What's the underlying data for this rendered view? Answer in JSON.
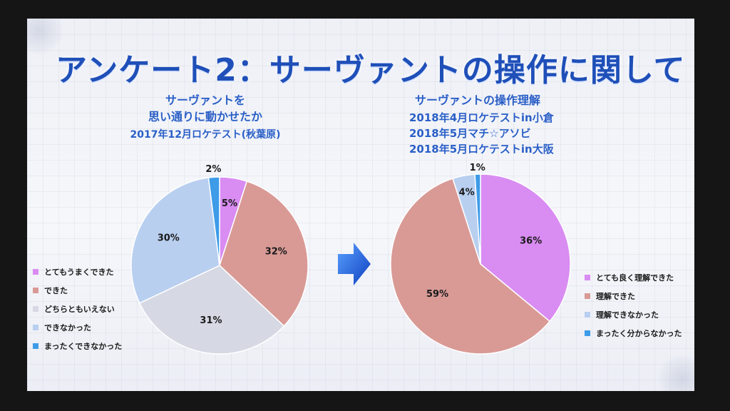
{
  "slide": {
    "title": "アンケート2：サーヴァントの操作に関して"
  },
  "left": {
    "heading_line1": "サーヴァントを",
    "heading_line2": "思い通りに動かせたか",
    "subheading": "2017年12月ロケテスト(秋葉原)"
  },
  "right": {
    "heading": "サーヴァントの操作理解",
    "subheading_line1": "2018年4月ロケテストin小倉",
    "subheading_line2": "2018年5月マチ☆アソビ",
    "subheading_line3": "2018年5月ロケテストin大阪"
  },
  "colors": {
    "violet": "#d98cf2",
    "salmon": "#d99a96",
    "grey": "#d6d9e3",
    "lightblue": "#b8cff0",
    "blue": "#3d9be8",
    "arrow": "#1f63e0"
  },
  "chart_data": [
    {
      "type": "pie",
      "title": "サーヴァントを 思い通りに動かせたか",
      "subtitle": "2017年12月ロケテスト(秋葉原)",
      "labels": [
        "とてもうまくできた",
        "できた",
        "どちらともいえない",
        "できなかった",
        "まったくできなかった"
      ],
      "values": [
        5,
        32,
        31,
        30,
        2
      ],
      "data_labels": [
        "5%",
        "32%",
        "31%",
        "30%",
        "2%"
      ],
      "slice_colors": [
        "#d98cf2",
        "#d99a96",
        "#d6d9e3",
        "#b8cff0",
        "#3d9be8"
      ],
      "legend_position": "bottom-left"
    },
    {
      "type": "pie",
      "title": "サーヴァントの操作理解",
      "subtitle": "2018年4月ロケテストin小倉 / 2018年5月マチ☆アソビ / 2018年5月ロケテストin大阪",
      "labels": [
        "とても良く理解できた",
        "理解できた",
        "理解できなかった",
        "まったく分からなかった"
      ],
      "values": [
        36,
        59,
        4,
        1
      ],
      "data_labels": [
        "36%",
        "59%",
        "4%",
        "1%"
      ],
      "slice_colors": [
        "#d98cf2",
        "#d99a96",
        "#b8cff0",
        "#3d9be8"
      ],
      "legend_position": "bottom-right"
    }
  ]
}
